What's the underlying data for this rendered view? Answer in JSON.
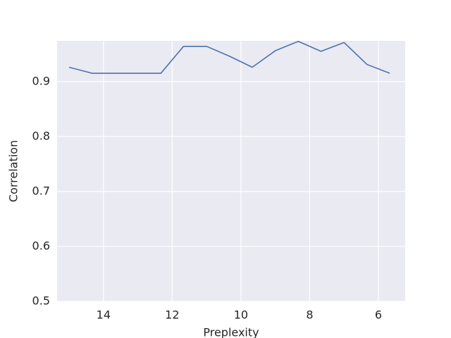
{
  "chart_data": {
    "type": "line",
    "xlabel": "Preplexity",
    "ylabel": "Correlation",
    "x": [
      15,
      14.33,
      13.67,
      13,
      12.33,
      11.67,
      11,
      10.33,
      9.67,
      9,
      8.33,
      7.67,
      7,
      6.33,
      5.67
    ],
    "values": [
      0.926,
      0.915,
      0.915,
      0.915,
      0.915,
      0.964,
      0.964,
      0.946,
      0.926,
      0.956,
      0.973,
      0.955,
      0.971,
      0.931,
      0.915
    ],
    "color": "#4c72b0",
    "xlim": [
      15.35,
      5.22
    ],
    "xticks": [
      14,
      12,
      10,
      8,
      6
    ],
    "ylim": [
      0.5,
      0.974
    ],
    "yticks": [
      0.5,
      0.6,
      0.7,
      0.8,
      0.9
    ],
    "grid": true
  }
}
